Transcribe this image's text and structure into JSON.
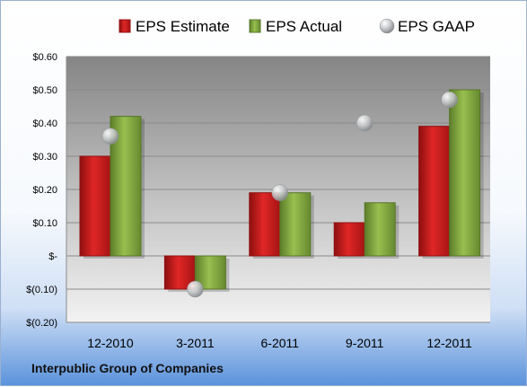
{
  "chart_data": {
    "type": "bar",
    "categories": [
      "12-2010",
      "3-2011",
      "6-2011",
      "9-2011",
      "12-2011"
    ],
    "series": [
      {
        "name": "EPS Estimate",
        "kind": "bar",
        "color": "#d81f1f",
        "values": [
          0.3,
          -0.1,
          0.19,
          0.1,
          0.39
        ]
      },
      {
        "name": "EPS Actual",
        "kind": "bar",
        "color": "#86ad3f",
        "values": [
          0.42,
          -0.1,
          0.19,
          0.16,
          0.5
        ]
      },
      {
        "name": "EPS GAAP",
        "kind": "marker",
        "color": "#b7babe",
        "values": [
          0.36,
          -0.1,
          0.19,
          0.4,
          0.47
        ]
      }
    ],
    "yticks": [
      0.6,
      0.5,
      0.4,
      0.3,
      0.2,
      0.1,
      0,
      -0.1,
      -0.2
    ],
    "ytick_labels": [
      "$0.60",
      "$0.50",
      "$0.40",
      "$0.30",
      "$0.20",
      "$0.10",
      "$-",
      "$(0.10)",
      "$(0.20)"
    ],
    "ylim": [
      -0.2,
      0.6
    ],
    "grid": true,
    "legend_position": "top"
  },
  "footer": {
    "company": "Interpublic Group of Companies"
  }
}
